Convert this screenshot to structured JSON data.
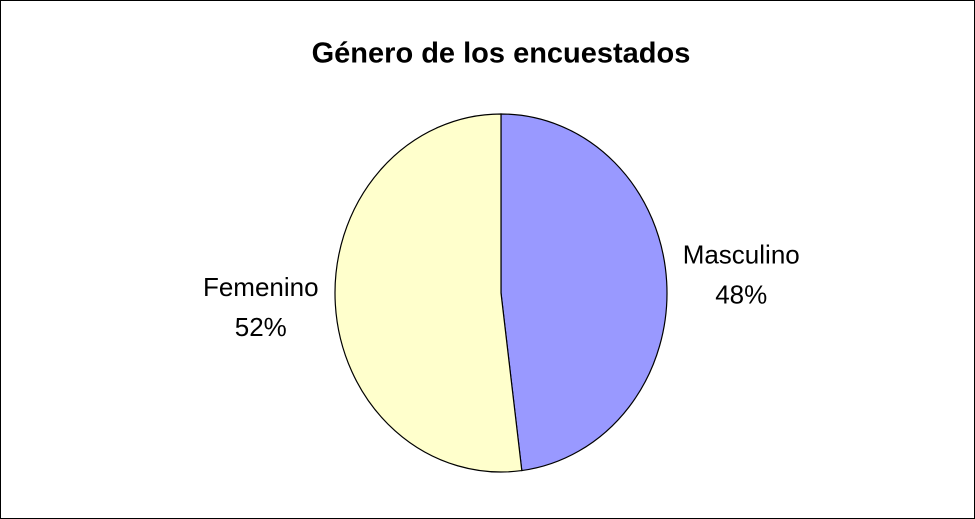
{
  "chart_data": {
    "type": "pie",
    "title": "Género de los encuestados",
    "categories": [
      "Masculino",
      "Femenino"
    ],
    "values": [
      48,
      52
    ],
    "value_labels": [
      "48%",
      "52%"
    ],
    "colors": [
      "#9999ff",
      "#ffffcc"
    ]
  }
}
